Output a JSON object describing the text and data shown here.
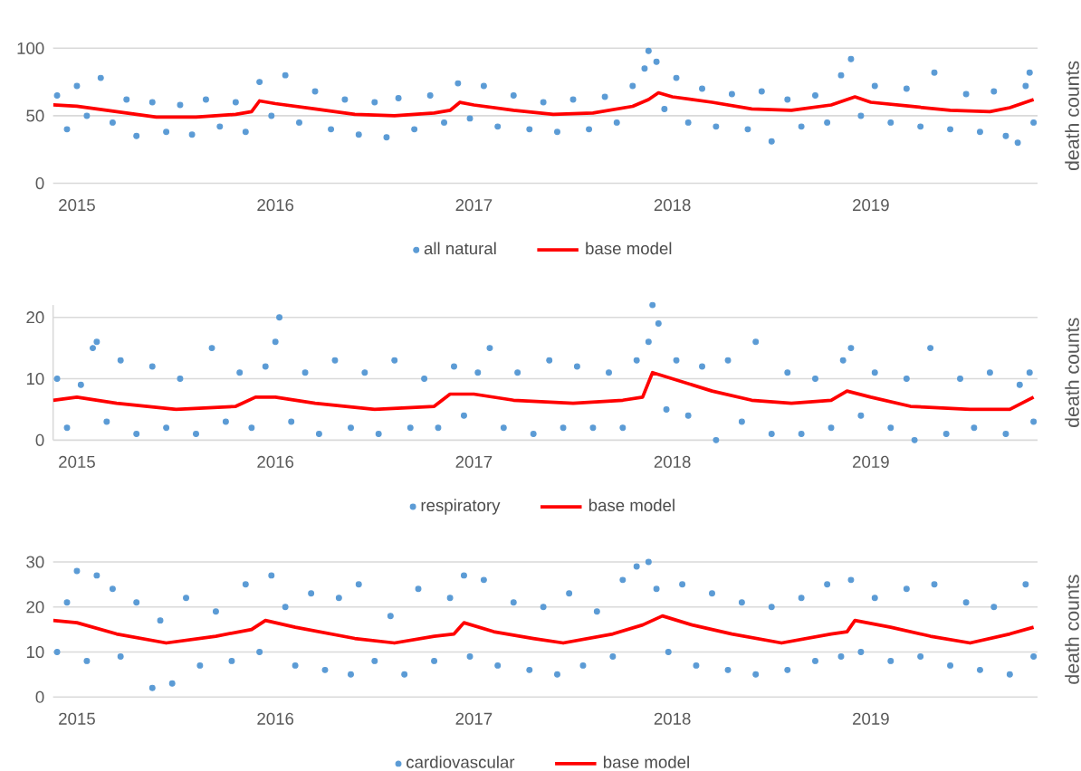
{
  "chart_data": [
    {
      "type": "scatter",
      "xlim": [
        2014.88,
        2019.84
      ],
      "xticks": [
        2015,
        2016,
        2017,
        2018,
        2019
      ],
      "ylim": [
        0,
        100
      ],
      "yticks": [
        0,
        50,
        100
      ],
      "ylabel": "death counts",
      "grid": "y",
      "legend": "bottom",
      "series": [
        {
          "name": "all natural",
          "marker": "circle",
          "color": "#5b9bd5",
          "x": [
            2014.9,
            2014.95,
            2015.0,
            2015.05,
            2015.12,
            2015.18,
            2015.25,
            2015.3,
            2015.38,
            2015.45,
            2015.52,
            2015.58,
            2015.65,
            2015.72,
            2015.8,
            2015.85,
            2015.92,
            2015.98,
            2016.05,
            2016.12,
            2016.2,
            2016.28,
            2016.35,
            2016.42,
            2016.5,
            2016.56,
            2016.62,
            2016.7,
            2016.78,
            2016.85,
            2016.92,
            2016.98,
            2017.05,
            2017.12,
            2017.2,
            2017.28,
            2017.35,
            2017.42,
            2017.5,
            2017.58,
            2017.66,
            2017.72,
            2017.8,
            2017.86,
            2017.88,
            2017.92,
            2017.96,
            2018.02,
            2018.08,
            2018.15,
            2018.22,
            2018.3,
            2018.38,
            2018.45,
            2018.5,
            2018.58,
            2018.65,
            2018.72,
            2018.78,
            2018.85,
            2018.9,
            2018.95,
            2019.02,
            2019.1,
            2019.18,
            2019.25,
            2019.32,
            2019.4,
            2019.48,
            2019.55,
            2019.62,
            2019.68,
            2019.74,
            2019.78,
            2019.8,
            2019.82
          ],
          "values": [
            65,
            40,
            72,
            50,
            78,
            45,
            62,
            35,
            60,
            38,
            58,
            36,
            62,
            42,
            60,
            38,
            75,
            50,
            80,
            45,
            68,
            40,
            62,
            36,
            60,
            34,
            63,
            40,
            65,
            45,
            74,
            48,
            72,
            42,
            65,
            40,
            60,
            38,
            62,
            40,
            64,
            45,
            72,
            85,
            98,
            90,
            55,
            78,
            45,
            70,
            42,
            66,
            40,
            68,
            31,
            62,
            42,
            65,
            45,
            80,
            92,
            50,
            72,
            45,
            70,
            42,
            82,
            40,
            66,
            38,
            68,
            35,
            30,
            72,
            82,
            45
          ]
        },
        {
          "name": "base model",
          "type": "line",
          "marker": "none",
          "line_style": "solid",
          "color": "#ff0000",
          "x": [
            2014.88,
            2015.0,
            2015.2,
            2015.4,
            2015.6,
            2015.8,
            2015.88,
            2015.92,
            2016.0,
            2016.2,
            2016.4,
            2016.6,
            2016.8,
            2016.88,
            2016.93,
            2017.0,
            2017.2,
            2017.4,
            2017.6,
            2017.8,
            2017.88,
            2017.93,
            2018.0,
            2018.2,
            2018.4,
            2018.6,
            2018.8,
            2018.88,
            2018.92,
            2019.0,
            2019.2,
            2019.4,
            2019.6,
            2019.7,
            2019.82
          ],
          "values": [
            58,
            57,
            53,
            49,
            49,
            51,
            53,
            61,
            59,
            55,
            51,
            50,
            52,
            54,
            60,
            58,
            54,
            51,
            52,
            57,
            62,
            67,
            64,
            60,
            55,
            54,
            58,
            62,
            64,
            60,
            57,
            54,
            53,
            56,
            62
          ]
        }
      ]
    },
    {
      "type": "scatter",
      "xlim": [
        2014.88,
        2019.84
      ],
      "xticks": [
        2015,
        2016,
        2017,
        2018,
        2019
      ],
      "ylim": [
        0,
        22
      ],
      "yticks": [
        0,
        10,
        20
      ],
      "ylabel": "death counts",
      "grid": "y",
      "legend": "bottom",
      "series": [
        {
          "name": "respiratory",
          "marker": "circle",
          "color": "#5b9bd5",
          "x": [
            2014.9,
            2014.95,
            2015.02,
            2015.08,
            2015.1,
            2015.15,
            2015.22,
            2015.3,
            2015.38,
            2015.45,
            2015.52,
            2015.6,
            2015.68,
            2015.75,
            2015.82,
            2015.88,
            2015.95,
            2016.0,
            2016.02,
            2016.08,
            2016.15,
            2016.22,
            2016.3,
            2016.38,
            2016.45,
            2016.52,
            2016.6,
            2016.68,
            2016.75,
            2016.82,
            2016.9,
            2016.95,
            2017.02,
            2017.08,
            2017.15,
            2017.22,
            2017.3,
            2017.38,
            2017.45,
            2017.52,
            2017.6,
            2017.68,
            2017.75,
            2017.82,
            2017.88,
            2017.9,
            2017.93,
            2017.97,
            2018.02,
            2018.08,
            2018.15,
            2018.22,
            2018.28,
            2018.35,
            2018.42,
            2018.5,
            2018.58,
            2018.65,
            2018.72,
            2018.8,
            2018.86,
            2018.9,
            2018.95,
            2019.02,
            2019.1,
            2019.18,
            2019.22,
            2019.3,
            2019.38,
            2019.45,
            2019.52,
            2019.6,
            2019.68,
            2019.75,
            2019.8,
            2019.82
          ],
          "values": [
            10,
            2,
            9,
            15,
            16,
            3,
            13,
            1,
            12,
            2,
            10,
            1,
            15,
            3,
            11,
            2,
            12,
            16,
            20,
            3,
            11,
            1,
            13,
            2,
            11,
            1,
            13,
            2,
            10,
            2,
            12,
            4,
            11,
            15,
            2,
            11,
            1,
            13,
            2,
            12,
            2,
            11,
            2,
            13,
            16,
            22,
            19,
            5,
            13,
            4,
            12,
            0,
            13,
            3,
            16,
            1,
            11,
            1,
            10,
            2,
            13,
            15,
            4,
            11,
            2,
            10,
            0,
            15,
            1,
            10,
            2,
            11,
            1,
            9,
            11,
            3
          ]
        },
        {
          "name": "base model",
          "type": "line",
          "marker": "none",
          "line_style": "solid",
          "color": "#ff0000",
          "x": [
            2014.88,
            2015.0,
            2015.2,
            2015.5,
            2015.8,
            2015.9,
            2016.0,
            2016.2,
            2016.5,
            2016.8,
            2016.88,
            2017.0,
            2017.2,
            2017.5,
            2017.75,
            2017.85,
            2017.9,
            2018.0,
            2018.2,
            2018.4,
            2018.6,
            2018.8,
            2018.88,
            2019.0,
            2019.2,
            2019.5,
            2019.7,
            2019.82
          ],
          "values": [
            6.5,
            7,
            6,
            5,
            5.5,
            7,
            7,
            6,
            5,
            5.5,
            7.5,
            7.5,
            6.5,
            6,
            6.5,
            7,
            11,
            10,
            8,
            6.5,
            6,
            6.5,
            8,
            7,
            5.5,
            5,
            5,
            7
          ]
        }
      ]
    },
    {
      "type": "scatter",
      "xlim": [
        2014.88,
        2019.84
      ],
      "xticks": [
        2015,
        2016,
        2017,
        2018,
        2019
      ],
      "ylim": [
        0,
        30
      ],
      "yticks": [
        0,
        10,
        20,
        30
      ],
      "ylabel": "death counts",
      "grid": "y",
      "legend": "bottom",
      "series": [
        {
          "name": "cardiovascular",
          "marker": "circle",
          "color": "#5b9bd5",
          "x": [
            2014.9,
            2014.95,
            2015.0,
            2015.05,
            2015.1,
            2015.18,
            2015.22,
            2015.3,
            2015.38,
            2015.42,
            2015.48,
            2015.55,
            2015.62,
            2015.7,
            2015.78,
            2015.85,
            2015.92,
            2015.98,
            2016.05,
            2016.1,
            2016.18,
            2016.25,
            2016.32,
            2016.38,
            2016.42,
            2016.5,
            2016.58,
            2016.65,
            2016.72,
            2016.8,
            2016.88,
            2016.95,
            2016.98,
            2017.05,
            2017.12,
            2017.2,
            2017.28,
            2017.35,
            2017.42,
            2017.48,
            2017.55,
            2017.62,
            2017.7,
            2017.75,
            2017.82,
            2017.88,
            2017.92,
            2017.98,
            2018.05,
            2018.12,
            2018.2,
            2018.28,
            2018.35,
            2018.42,
            2018.5,
            2018.58,
            2018.65,
            2018.72,
            2018.78,
            2018.85,
            2018.9,
            2018.95,
            2019.02,
            2019.1,
            2019.18,
            2019.25,
            2019.32,
            2019.4,
            2019.48,
            2019.55,
            2019.62,
            2019.7,
            2019.78,
            2019.82
          ],
          "values": [
            10,
            21,
            28,
            8,
            27,
            24,
            9,
            21,
            2,
            17,
            3,
            22,
            7,
            19,
            8,
            25,
            10,
            27,
            20,
            7,
            23,
            6,
            22,
            5,
            25,
            8,
            18,
            5,
            24,
            8,
            22,
            27,
            9,
            26,
            7,
            21,
            6,
            20,
            5,
            23,
            7,
            19,
            9,
            26,
            29,
            30,
            24,
            10,
            25,
            7,
            23,
            6,
            21,
            5,
            20,
            6,
            22,
            8,
            25,
            9,
            26,
            10,
            22,
            8,
            24,
            9,
            25,
            7,
            21,
            6,
            20,
            5,
            25,
            9
          ]
        },
        {
          "name": "base model",
          "type": "line",
          "marker": "none",
          "line_style": "solid",
          "color": "#ff0000",
          "x": [
            2014.88,
            2015.0,
            2015.2,
            2015.45,
            2015.7,
            2015.88,
            2015.95,
            2016.1,
            2016.4,
            2016.6,
            2016.8,
            2016.9,
            2016.95,
            2017.1,
            2017.3,
            2017.45,
            2017.7,
            2017.85,
            2017.95,
            2018.1,
            2018.3,
            2018.55,
            2018.8,
            2018.88,
            2018.92,
            2019.1,
            2019.3,
            2019.5,
            2019.7,
            2019.82
          ],
          "values": [
            17,
            16.5,
            14,
            12,
            13.5,
            15,
            17,
            15.5,
            13,
            12,
            13.5,
            14,
            16.5,
            14.5,
            13,
            12,
            14,
            16,
            18,
            16,
            14,
            12,
            14,
            14.5,
            17,
            15.5,
            13.5,
            12,
            14,
            15.5
          ]
        }
      ]
    }
  ]
}
